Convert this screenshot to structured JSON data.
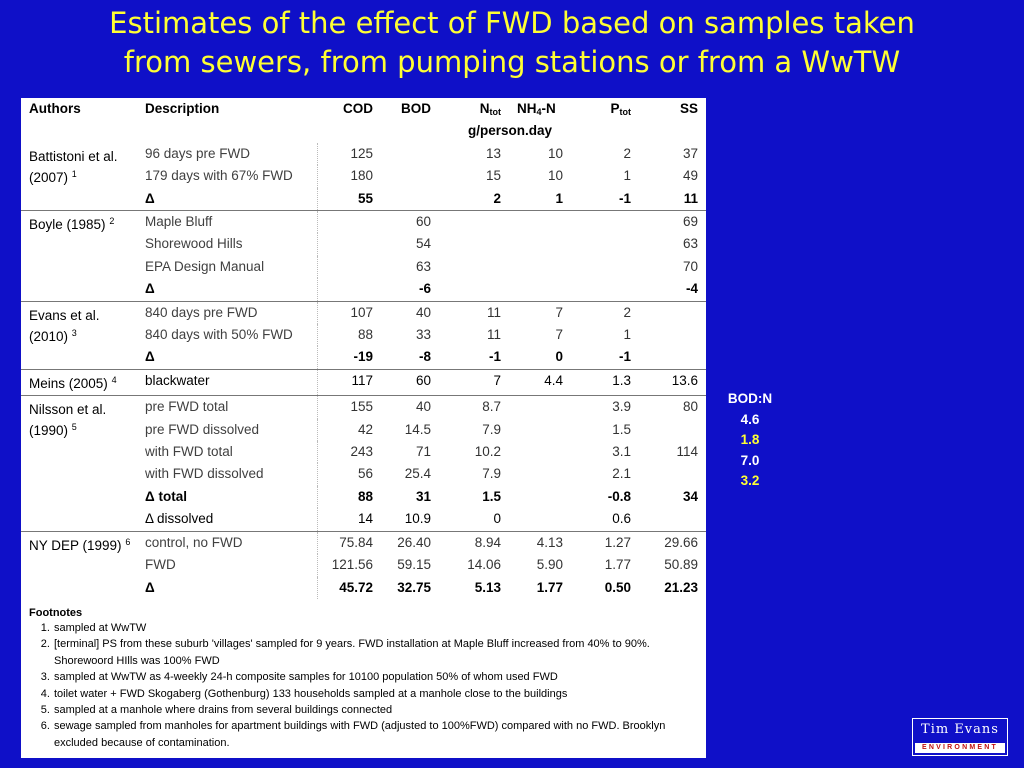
{
  "title": {
    "line1": "Estimates of the effect of FWD based on samples taken",
    "line2": "from sewers, from pumping stations or from a WwTW"
  },
  "table": {
    "headers": {
      "authors": "Authors",
      "description": "Description",
      "cod": "COD",
      "bod": "BOD",
      "ntot_main": "N",
      "ntot_sub": "tot",
      "nh4_pre": "NH",
      "nh4_sub": "4",
      "nh4_post": "-N",
      "ptot_main": "P",
      "ptot_sub": "tot",
      "ss": "SS",
      "units": "g/person.day"
    },
    "studies": [
      {
        "author": "Battistoni et al. (2007)",
        "ref": "1",
        "rows": [
          {
            "desc": "96 days pre FWD",
            "cod": "125",
            "bod": "",
            "ntot": "13",
            "nh4": "10",
            "ptot": "2",
            "ss": "37",
            "delta": false
          },
          {
            "desc": "179 days with 67% FWD",
            "cod": "180",
            "bod": "",
            "ntot": "15",
            "nh4": "10",
            "ptot": "1",
            "ss": "49",
            "delta": false
          },
          {
            "desc": "Δ",
            "cod": "55",
            "bod": "",
            "ntot": "2",
            "nh4": "1",
            "ptot": "-1",
            "ss": "11",
            "delta": true
          }
        ]
      },
      {
        "author": "Boyle (1985)",
        "ref": "2",
        "rows": [
          {
            "desc": "Maple Bluff",
            "cod": "",
            "bod": "60",
            "ntot": "",
            "nh4": "",
            "ptot": "",
            "ss": "69",
            "delta": false
          },
          {
            "desc": "Shorewood Hills",
            "cod": "",
            "bod": "54",
            "ntot": "",
            "nh4": "",
            "ptot": "",
            "ss": "63",
            "delta": false
          },
          {
            "desc": "EPA Design Manual",
            "cod": "",
            "bod": "63",
            "ntot": "",
            "nh4": "",
            "ptot": "",
            "ss": "70",
            "delta": false
          },
          {
            "desc": "Δ",
            "cod": "",
            "bod": "-6",
            "ntot": "",
            "nh4": "",
            "ptot": "",
            "ss": "-4",
            "delta": true
          }
        ]
      },
      {
        "author": "Evans et al. (2010)",
        "ref": "3",
        "rows": [
          {
            "desc": "840 days pre FWD",
            "cod": "107",
            "bod": "40",
            "ntot": "11",
            "nh4": "7",
            "ptot": "2",
            "ss": "",
            "delta": false
          },
          {
            "desc": "840 days with 50% FWD",
            "cod": "88",
            "bod": "33",
            "ntot": "11",
            "nh4": "7",
            "ptot": "1",
            "ss": "",
            "delta": false
          },
          {
            "desc": "Δ",
            "cod": "-19",
            "bod": "-8",
            "ntot": "-1",
            "nh4": "0",
            "ptot": "-1",
            "ss": "",
            "delta": true
          }
        ]
      },
      {
        "author": "Meins (2005)",
        "ref": "4",
        "rows": [
          {
            "desc": "blackwater",
            "cod": "117",
            "bod": "60",
            "ntot": "7",
            "nh4": "4.4",
            "ptot": "1.3",
            "ss": "13.6",
            "delta": false,
            "dark": true
          }
        ]
      },
      {
        "author": "Nilsson et al. (1990)",
        "ref": "5",
        "rows": [
          {
            "desc": "pre FWD total",
            "cod": "155",
            "bod": "40",
            "ntot": "8.7",
            "nh4": "",
            "ptot": "3.9",
            "ss": "80",
            "delta": false
          },
          {
            "desc": "pre FWD dissolved",
            "cod": "42",
            "bod": "14.5",
            "ntot": "7.9",
            "nh4": "",
            "ptot": "1.5",
            "ss": "",
            "delta": false
          },
          {
            "desc": "with FWD total",
            "cod": "243",
            "bod": "71",
            "ntot": "10.2",
            "nh4": "",
            "ptot": "3.1",
            "ss": "114",
            "delta": false
          },
          {
            "desc": "with FWD dissolved",
            "cod": "56",
            "bod": "25.4",
            "ntot": "7.9",
            "nh4": "",
            "ptot": "2.1",
            "ss": "",
            "delta": false
          },
          {
            "desc": "Δ total",
            "cod": "88",
            "bod": "31",
            "ntot": "1.5",
            "nh4": "",
            "ptot": "-0.8",
            "ss": "34",
            "delta": true
          },
          {
            "desc": "Δ dissolved",
            "cod": "14",
            "bod": "10.9",
            "ntot": "0",
            "nh4": "",
            "ptot": "0.6",
            "ss": "",
            "delta": false,
            "dark": true
          }
        ]
      },
      {
        "author": "NY DEP (1999)",
        "ref": "6",
        "rows": [
          {
            "desc": "control, no FWD",
            "cod": "75.84",
            "bod": "26.40",
            "ntot": "8.94",
            "nh4": "4.13",
            "ptot": "1.27",
            "ss": "29.66",
            "delta": false
          },
          {
            "desc": "FWD",
            "cod": "121.56",
            "bod": "59.15",
            "ntot": "14.06",
            "nh4": "5.90",
            "ptot": "1.77",
            "ss": "50.89",
            "delta": false
          },
          {
            "desc": "Δ",
            "cod": "45.72",
            "bod": "32.75",
            "ntot": "5.13",
            "nh4": "1.77",
            "ptot": "0.50",
            "ss": "21.23",
            "delta": true
          }
        ]
      }
    ]
  },
  "footnotes": {
    "title": "Footnotes",
    "items": [
      "sampled at WwTW",
      "[terminal] PS from these suburb 'villages' sampled for 9 years.  FWD installation at Maple Bluff increased from 40% to 90%.  Shorewoord HIlls was 100% FWD",
      "sampled at WwTW as 4-weekly 24-h composite samples for 10100 population 50% of whom used FWD",
      "toilet water + FWD Skogaberg (Gothenburg) 133 households sampled at a manhole close to the buildings",
      "sampled at a manhole where drains from several buildings connected",
      "sewage sampled from manholes for apartment buildings with FWD (adjusted to 100%FWD) compared with no FWD.  Brooklyn excluded because of contamination."
    ]
  },
  "side_note": {
    "label": "BOD:N",
    "values": [
      {
        "text": "4.6",
        "color": "#ffffff"
      },
      {
        "text": "1.8",
        "color": "#ffff33"
      },
      {
        "text": "7.0",
        "color": "#ffffff"
      },
      {
        "text": "3.2",
        "color": "#ffff33"
      }
    ]
  },
  "logo": {
    "top": "Tim Evans",
    "bottom": "ENVIRONMENT"
  },
  "colors": {
    "background": "#0f10c8",
    "title": "#ffff33",
    "highlight": "#ffff33",
    "logo_bottom_text": "#c01010"
  }
}
